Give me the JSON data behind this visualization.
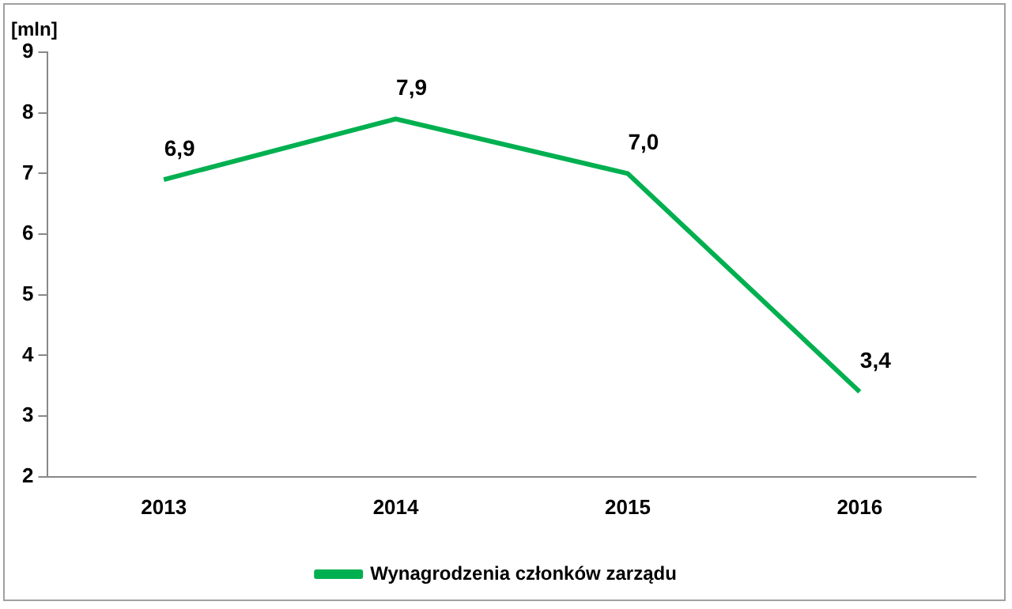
{
  "chart_data": {
    "type": "line",
    "ylabel": "[mln]",
    "categories": [
      "2013",
      "2014",
      "2015",
      "2016"
    ],
    "series": [
      {
        "name": "Wynagrodzenia członków zarządu",
        "color": "#00b050",
        "values": [
          6.9,
          7.9,
          7.0,
          3.4
        ],
        "value_labels": [
          "6,9",
          "7,9",
          "7,0",
          "3,4"
        ]
      }
    ],
    "ylim": [
      2,
      9
    ],
    "yticks": [
      2,
      3,
      4,
      5,
      6,
      7,
      8,
      9
    ],
    "grid": false,
    "legend": "bottom",
    "marker": "none",
    "line_style": "solid"
  }
}
